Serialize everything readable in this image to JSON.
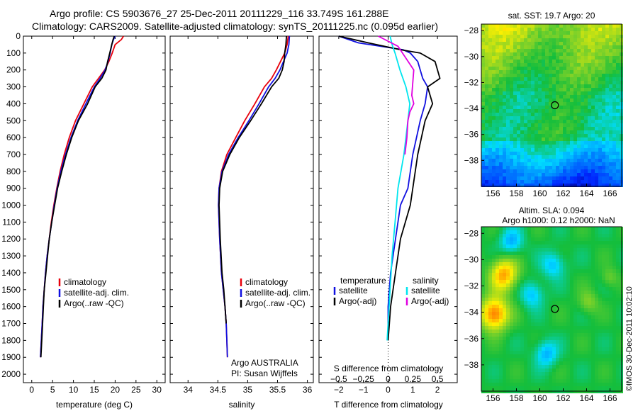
{
  "title_line1": "Argo profile: CS 5903676_27 25-Dec-2011 20111229_116 33.749S 161.288E",
  "title_line2": "Climatology: CARS2009. Satellite-adjusted climatology: synTS_20111225.nc (0.095d earlier)",
  "credit": "©IMOS 30-Dec-2011 10:02:10",
  "colors": {
    "climatology": "#e8000b",
    "satellite": "#1010e0",
    "argo": "#000000",
    "satellite_salinity": "#00e5ee",
    "argo_salinity_diff": "#e000e0",
    "map_circle": "#000000"
  },
  "chart_data": [
    {
      "type": "line",
      "id": "temperature",
      "xlabel": "temperature (deg C)",
      "ylabel": "",
      "xlim": [
        -2,
        32
      ],
      "ylim": [
        2050,
        0
      ],
      "xticks": [
        0,
        5,
        10,
        15,
        20,
        25,
        30
      ],
      "yticks": [
        0,
        100,
        200,
        300,
        400,
        500,
        600,
        700,
        800,
        900,
        1000,
        1100,
        1200,
        1300,
        1400,
        1500,
        1600,
        1700,
        1800,
        1900,
        2000
      ],
      "legend": [
        "climatology",
        "satellite-adj. clim.",
        "Argo(..raw -QC)"
      ],
      "legend_position": "lower-right",
      "series": [
        {
          "name": "climatology",
          "color_key": "climatology",
          "x": [
            22.0,
            21.5,
            20.0,
            19.3,
            18.5,
            17.5,
            16.0,
            14.5,
            12.5,
            10.5,
            9.0,
            7.8,
            6.8,
            6.0,
            5.3,
            4.7,
            4.2,
            3.7,
            3.3,
            3.0,
            2.7,
            2.5,
            2.3,
            2.1
          ],
          "y": [
            0,
            20,
            50,
            100,
            150,
            200,
            250,
            300,
            400,
            500,
            600,
            700,
            800,
            900,
            1000,
            1100,
            1200,
            1300,
            1400,
            1500,
            1600,
            1700,
            1800,
            1900
          ]
        },
        {
          "name": "satellite-adj. clim.",
          "color_key": "satellite",
          "x": [
            20.0,
            19.6,
            19.2,
            18.8,
            18.3,
            17.6,
            16.4,
            15.0,
            13.0,
            11.0,
            9.4,
            8.1,
            7.0,
            6.1,
            5.4,
            4.8,
            4.2,
            3.7,
            3.3,
            3.0,
            2.7,
            2.5,
            2.3,
            2.1
          ],
          "y": [
            0,
            20,
            50,
            100,
            150,
            200,
            250,
            300,
            400,
            500,
            600,
            700,
            800,
            900,
            1000,
            1100,
            1200,
            1300,
            1400,
            1500,
            1600,
            1700,
            1800,
            1900
          ]
        },
        {
          "name": "Argo(..raw -QC)",
          "color_key": "argo",
          "x": [
            19.8,
            19.5,
            19.2,
            18.7,
            18.2,
            17.8,
            16.8,
            15.2,
            13.4,
            11.2,
            9.6,
            8.3,
            7.2,
            6.2,
            5.5,
            4.8,
            4.2,
            3.8,
            3.4,
            3.0,
            2.8,
            2.6,
            2.4,
            2.2
          ],
          "y": [
            0,
            20,
            50,
            100,
            150,
            200,
            250,
            300,
            400,
            500,
            600,
            700,
            800,
            900,
            1000,
            1100,
            1200,
            1300,
            1400,
            1500,
            1600,
            1700,
            1800,
            1900
          ]
        }
      ]
    },
    {
      "type": "line",
      "id": "salinity",
      "xlabel": "salinity",
      "ylabel": "",
      "xlim": [
        33.7,
        36.1
      ],
      "ylim": [
        2050,
        0
      ],
      "xticks": [
        34,
        34.5,
        35,
        35.5,
        36
      ],
      "legend": [
        "climatology",
        "satellite-adj. clim.",
        "Argo(..raw -QC)"
      ],
      "legend_position": "lower-right",
      "annotation_line1": "Argo AUSTRALIA",
      "annotation_line2": "PI: Susan Wijffels",
      "series": [
        {
          "name": "climatology",
          "color_key": "climatology",
          "x": [
            35.68,
            35.66,
            35.62,
            35.55,
            35.48,
            35.4,
            35.28,
            35.12,
            34.95,
            34.8,
            34.65,
            34.56,
            34.52,
            34.51,
            34.53,
            34.56,
            34.59,
            34.62,
            34.64,
            34.65,
            34.66
          ],
          "y": [
            0,
            50,
            100,
            150,
            200,
            250,
            300,
            400,
            500,
            600,
            700,
            800,
            900,
            1000,
            1200,
            1400,
            1500,
            1600,
            1700,
            1800,
            1900
          ]
        },
        {
          "name": "satellite-adj. clim.",
          "color_key": "satellite",
          "x": [
            35.7,
            35.69,
            35.66,
            35.6,
            35.54,
            35.46,
            35.35,
            35.19,
            35.02,
            34.84,
            34.68,
            34.57,
            34.52,
            34.51,
            34.53,
            34.56,
            34.59,
            34.62,
            34.64,
            34.65,
            34.66
          ],
          "y": [
            0,
            50,
            100,
            150,
            200,
            250,
            300,
            400,
            500,
            600,
            700,
            800,
            900,
            1000,
            1200,
            1400,
            1500,
            1600,
            1700,
            1800,
            1900
          ]
        },
        {
          "name": "Argo(..raw -QC)",
          "color_key": "argo",
          "x": [
            35.65,
            35.64,
            35.62,
            35.61,
            35.58,
            35.52,
            35.4,
            35.23,
            35.05,
            34.86,
            34.7,
            34.58,
            34.53,
            34.52,
            34.54,
            34.57,
            34.6,
            34.62,
            34.64
          ],
          "y": [
            0,
            50,
            100,
            150,
            200,
            250,
            300,
            400,
            500,
            600,
            700,
            800,
            900,
            1000,
            1200,
            1400,
            1500,
            1600,
            1700
          ]
        }
      ]
    },
    {
      "type": "line",
      "id": "differences",
      "xlabel": "T difference from climatology",
      "xlabel_top": "S difference from climatology",
      "xlim": [
        -2.8,
        2.8
      ],
      "ylim": [
        2050,
        0
      ],
      "xticks": [
        -2,
        -1,
        0,
        1,
        2
      ],
      "xtick_labels": [
        "−2",
        "−1",
        "0",
        "1",
        "2"
      ],
      "s_xticks": [
        -0.5,
        -0.25,
        0,
        0.25,
        0.5
      ],
      "s_xtick_labels": [
        "−0.5",
        "−0.25",
        "0",
        "0.25",
        "0.5"
      ],
      "legend_temperature": [
        "temperature",
        "satellite",
        "Argo(-adj)"
      ],
      "legend_salinity": [
        "salinity",
        "satellite",
        "Argo(-adj)"
      ],
      "legend_position": "lower-center",
      "series": [
        {
          "name": "satellite",
          "group": "temperature",
          "color_key": "satellite",
          "x": [
            -2.0,
            -1.2,
            0.6,
            0.9,
            1.2,
            1.4,
            1.6,
            1.5,
            1.3,
            1.0,
            0.8,
            0.5,
            0.3,
            0.1,
            0.0,
            0.0
          ],
          "y": [
            0,
            40,
            80,
            100,
            150,
            250,
            300,
            400,
            500,
            700,
            900,
            1000,
            1200,
            1400,
            1600,
            1800
          ]
        },
        {
          "name": "Argo(-adj)",
          "group": "temperature",
          "color_key": "argo",
          "x": [
            -2.0,
            -0.8,
            0.5,
            1.3,
            1.9,
            2.1,
            1.6,
            1.8,
            1.5,
            1.2,
            1.0,
            0.9,
            0.5,
            0.3,
            0.1,
            0.0
          ],
          "y": [
            0,
            40,
            80,
            100,
            150,
            250,
            300,
            400,
            500,
            700,
            900,
            1000,
            1200,
            1400,
            1600,
            1800
          ]
        },
        {
          "name": "satellite",
          "group": "salinity",
          "color_key": "satellite_salinity",
          "x": [
            0.02,
            0.04,
            0.07,
            0.12,
            0.18,
            0.22,
            0.2,
            0.16,
            0.1,
            0.07,
            0.04,
            0.02,
            0.0,
            -0.01
          ],
          "y": [
            0,
            50,
            100,
            200,
            300,
            400,
            500,
            700,
            900,
            1100,
            1300,
            1500,
            1700,
            1800
          ]
        },
        {
          "name": "Argo(-adj)",
          "group": "salinity",
          "color_key": "argo_salinity_diff",
          "x": [
            -0.1,
            0.1,
            0.26,
            0.24,
            0.26,
            0.22,
            0.2,
            0.19,
            0.17
          ],
          "y": [
            0,
            60,
            200,
            350,
            400,
            450,
            500,
            600,
            700
          ]
        }
      ]
    },
    {
      "type": "heatmap",
      "id": "sst_map",
      "title": "sat. SST: 19.7 Argo: 20",
      "xlim": [
        155,
        167
      ],
      "ylim": [
        -40,
        -27.5
      ],
      "xticks": [
        156,
        158,
        160,
        162,
        164,
        166
      ],
      "yticks": [
        -28,
        -30,
        -32,
        -34,
        -36,
        -38
      ],
      "ytick_labels": [
        "−28",
        "−30",
        "−32",
        "−34",
        "−36",
        "−38"
      ],
      "marker": {
        "lon": 161.288,
        "lat": -33.749
      }
    },
    {
      "type": "heatmap",
      "id": "sla_map",
      "title_line1": "Altim. SLA: 0.094",
      "title_line2": "Argo h1000: 0.12 h2000: NaN",
      "xlim": [
        155,
        167
      ],
      "ylim": [
        -40,
        -27.5
      ],
      "xticks": [
        156,
        158,
        160,
        162,
        164,
        166
      ],
      "yticks": [
        -28,
        -30,
        -32,
        -34,
        -36,
        -38
      ],
      "ytick_labels": [
        "−28",
        "−30",
        "−32",
        "−34",
        "−36",
        "−38"
      ],
      "marker": {
        "lon": 161.288,
        "lat": -33.749
      }
    }
  ]
}
